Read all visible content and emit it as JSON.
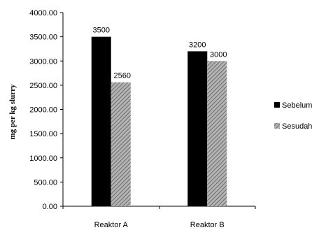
{
  "chart_data": {
    "type": "bar",
    "categories": [
      "Reaktor A",
      "Reaktor B"
    ],
    "series": [
      {
        "name": "Sebelum",
        "values": [
          3500,
          3200
        ],
        "color": "#000000",
        "pattern": "solid"
      },
      {
        "name": "Sesudah",
        "values": [
          2560,
          3000
        ],
        "color": "#8c8c8c",
        "pattern": "diagonal-hatch"
      }
    ],
    "data_labels": [
      [
        "3500",
        "3200"
      ],
      [
        "2560",
        "3000"
      ]
    ],
    "ylabel": "mg per kg slurry",
    "ylim": [
      0,
      4000
    ],
    "yticks": [
      0,
      500,
      1000,
      1500,
      2000,
      2500,
      3000,
      3500,
      4000
    ],
    "ytick_labels": [
      "0.00",
      "500.00",
      "1000.00",
      "1500.00",
      "2000.00",
      "2500.00",
      "3000.00",
      "3500.00",
      "4000.00"
    ],
    "grid": false,
    "legend_position": "right"
  }
}
